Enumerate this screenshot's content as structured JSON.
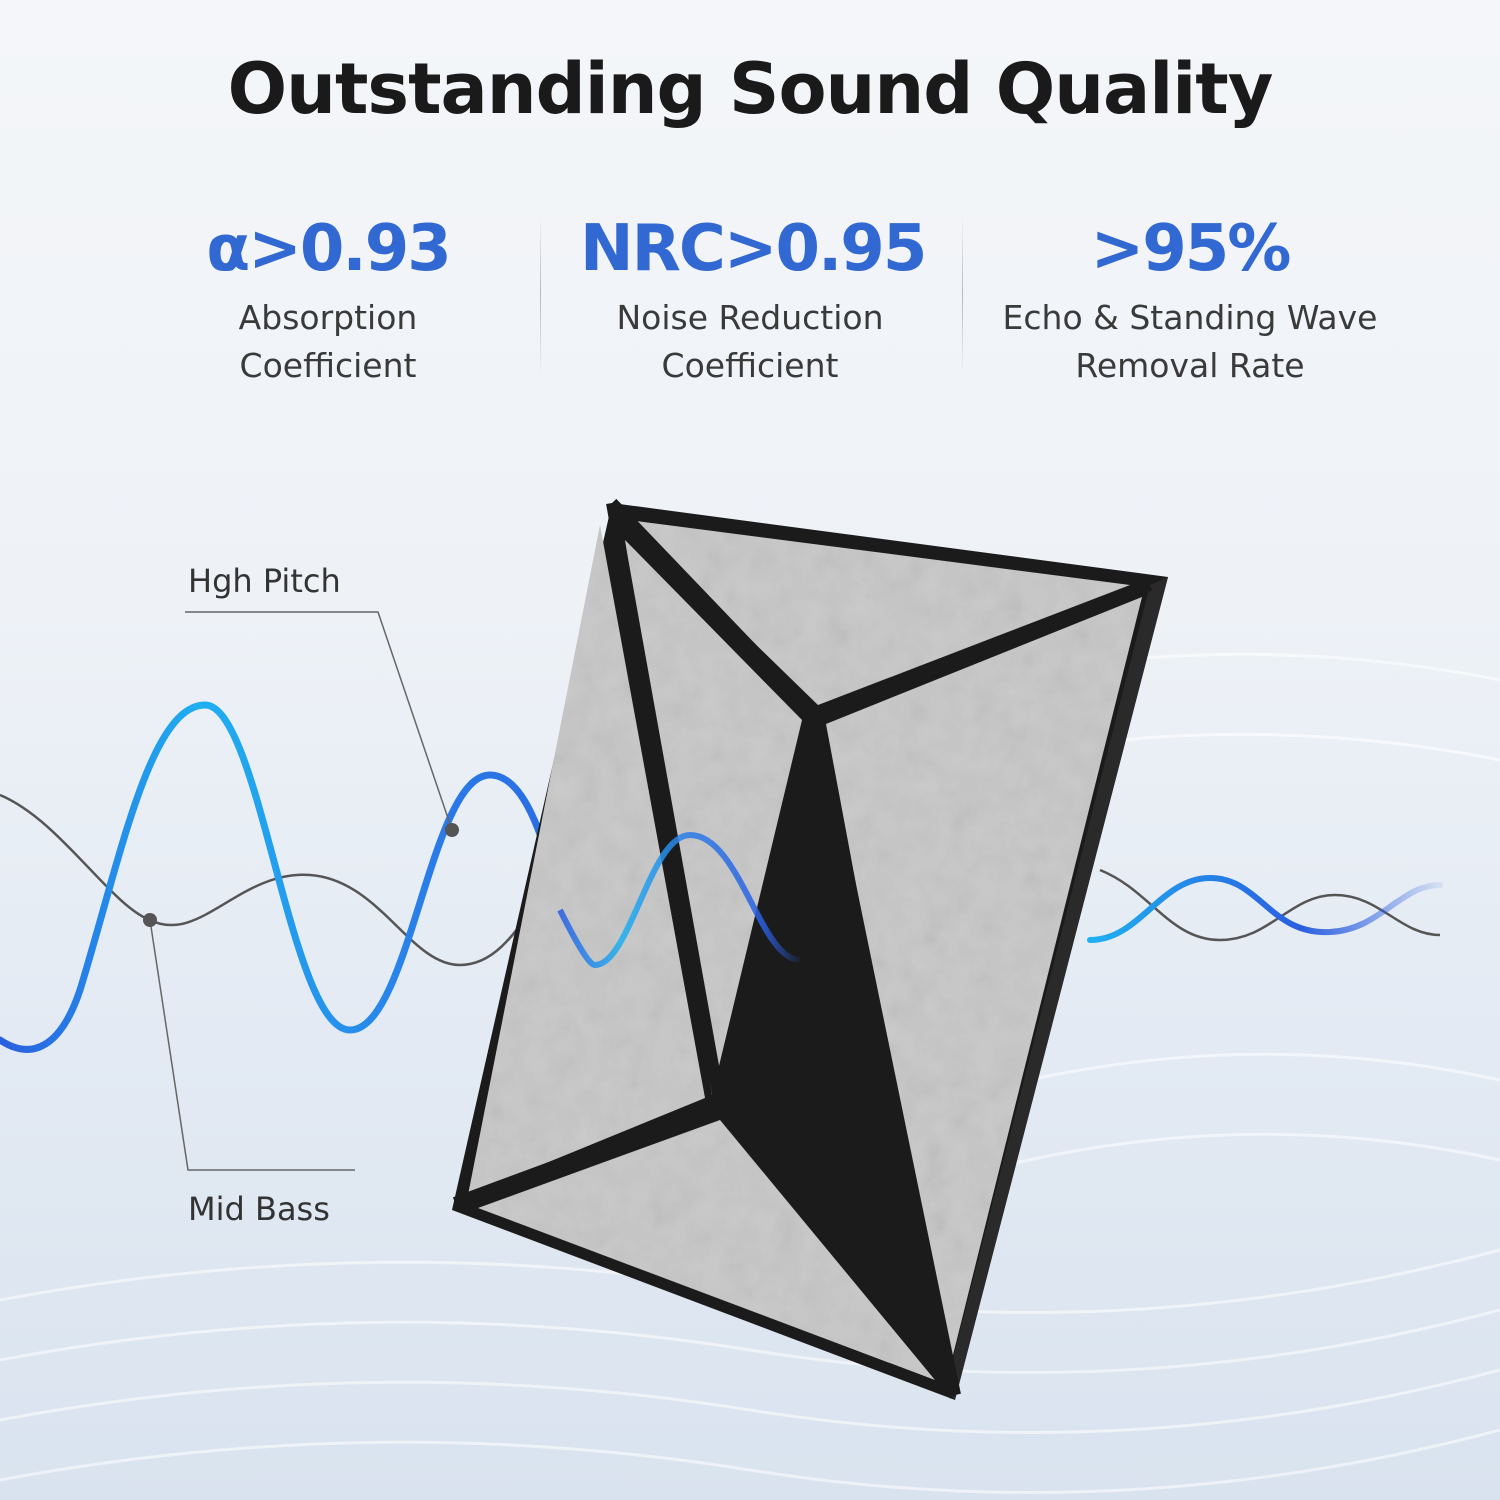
{
  "title": "Outstanding Sound Quality",
  "stats": [
    {
      "value": "α>0.93",
      "label_line1": "Absorption",
      "label_line2": "Coefficient"
    },
    {
      "value": "NRC>0.95",
      "label_line1": "Noise Reduction",
      "label_line2": "Coefficient"
    },
    {
      "value": ">95%",
      "label_line1": "Echo & Standing Wave",
      "label_line2": "Removal Rate"
    }
  ],
  "callouts": {
    "high_pitch": "Hgh Pitch",
    "mid_bass": "Mid Bass"
  },
  "colors": {
    "accent_blue": "#3268d2",
    "wave_light_blue": "#1fb0f0",
    "wave_deep_blue": "#2a5ee0",
    "panel_felt": "#c9c9c9",
    "panel_edge": "#1b1b1b"
  }
}
